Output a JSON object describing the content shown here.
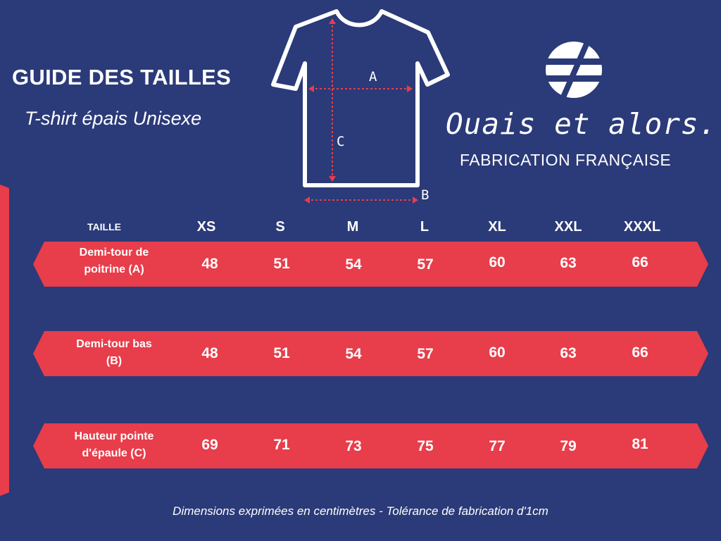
{
  "header": {
    "title": "GUIDE DES TAILLES",
    "subtitle": "T-shirt épais Unisexe"
  },
  "diagram": {
    "label_a": "A",
    "label_b": "B",
    "label_c": "C"
  },
  "brand": {
    "name": "Ouais et alors.",
    "tagline": "FABRICATION FRANÇAISE"
  },
  "table": {
    "size_header": "TAILLE",
    "sizes": [
      "XS",
      "S",
      "M",
      "L",
      "XL",
      "XXL",
      "XXXL"
    ],
    "rows": [
      {
        "label_line1": "Demi-tour de",
        "label_line2": "poitrine (A)",
        "values": [
          "48",
          "51",
          "54",
          "57",
          "60",
          "63",
          "66"
        ]
      },
      {
        "label_line1": "Demi-tour bas",
        "label_line2": "(B)",
        "values": [
          "48",
          "51",
          "54",
          "57",
          "60",
          "63",
          "66"
        ]
      },
      {
        "label_line1": "Hauteur pointe",
        "label_line2": "d'épaule (C)",
        "values": [
          "69",
          "71",
          "73",
          "75",
          "77",
          "79",
          "81"
        ]
      }
    ]
  },
  "footer": {
    "note": "Dimensions exprimées en centimètres - Tolérance de fabrication d'1cm"
  },
  "colors": {
    "background": "#2b3a78",
    "accent_red": "#e83d4a",
    "text": "#ffffff"
  }
}
